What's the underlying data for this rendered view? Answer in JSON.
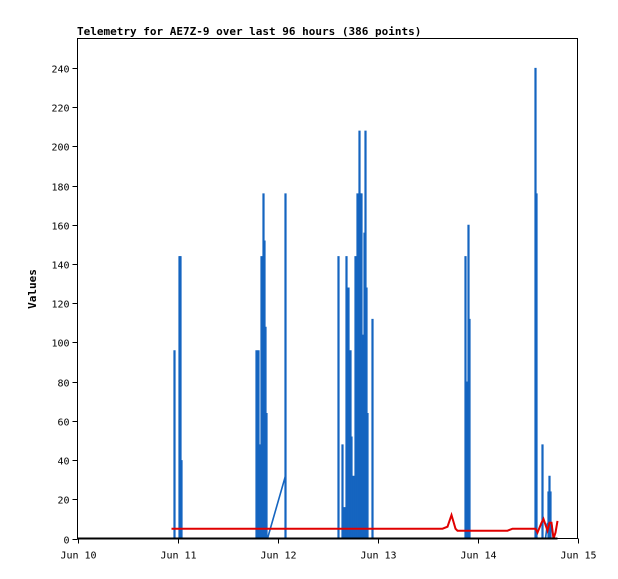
{
  "chart_data": {
    "type": "line",
    "title": "Telemetry for AE7Z-9 over last 96 hours (386 points)",
    "xlabel": "",
    "ylabel": "Values",
    "xlim": [
      0,
      5
    ],
    "ylim": [
      0,
      255
    ],
    "x_ticks": [
      {
        "value": 0,
        "label": "Jun 10"
      },
      {
        "value": 1,
        "label": "Jun 11"
      },
      {
        "value": 2,
        "label": "Jun 12"
      },
      {
        "value": 3,
        "label": "Jun 13"
      },
      {
        "value": 4,
        "label": "Jun 14"
      },
      {
        "value": 5,
        "label": "Jun 15"
      }
    ],
    "y_ticks": [
      0,
      20,
      40,
      60,
      80,
      100,
      120,
      140,
      160,
      180,
      200,
      220,
      240
    ],
    "grid": false,
    "series": [
      {
        "color": "#1565C0",
        "spikes": [
          [
            0.97,
            96
          ],
          [
            1.02,
            144
          ],
          [
            1.03,
            144
          ],
          [
            1.04,
            40
          ],
          [
            1.79,
            96
          ],
          [
            1.81,
            96
          ],
          [
            1.82,
            48
          ],
          [
            1.84,
            144
          ],
          [
            1.85,
            64
          ],
          [
            1.86,
            176
          ],
          [
            1.87,
            152
          ],
          [
            1.88,
            108
          ],
          [
            1.89,
            64
          ],
          [
            2.08,
            176
          ],
          [
            2.61,
            144
          ],
          [
            2.65,
            48
          ],
          [
            2.67,
            16
          ],
          [
            2.69,
            144
          ],
          [
            2.7,
            64
          ],
          [
            2.71,
            128
          ],
          [
            2.73,
            96
          ],
          [
            2.74,
            52
          ],
          [
            2.76,
            32
          ],
          [
            2.78,
            144
          ],
          [
            2.8,
            176
          ],
          [
            2.82,
            208
          ],
          [
            2.83,
            176
          ],
          [
            2.84,
            176
          ],
          [
            2.85,
            96
          ],
          [
            2.86,
            104
          ],
          [
            2.87,
            156
          ],
          [
            2.88,
            208
          ],
          [
            2.89,
            128
          ],
          [
            2.9,
            64
          ],
          [
            2.95,
            112
          ],
          [
            3.88,
            144
          ],
          [
            3.89,
            80
          ],
          [
            3.9,
            80
          ],
          [
            3.91,
            160
          ],
          [
            3.92,
            112
          ],
          [
            4.58,
            240
          ],
          [
            4.59,
            176
          ],
          [
            4.65,
            48
          ],
          [
            4.71,
            24
          ],
          [
            4.72,
            32
          ],
          [
            4.73,
            24
          ]
        ],
        "ramps": [
          {
            "x0": 1.9,
            "y0": 0,
            "x1": 2.08,
            "y1": 32
          },
          {
            "x0": 4.68,
            "y0": 0,
            "x1": 4.7,
            "y1": 8
          },
          {
            "x0": 4.74,
            "y0": 8,
            "x1": 4.76,
            "y1": 0
          }
        ]
      },
      {
        "color": "#E00000",
        "x": [
          0.94,
          1.2,
          1.5,
          2.0,
          2.5,
          3.0,
          3.5,
          3.65,
          3.7,
          3.74,
          3.78,
          3.8,
          4.0,
          4.3,
          4.35,
          4.55,
          4.58,
          4.6,
          4.64,
          4.66,
          4.7,
          4.72,
          4.74,
          4.76,
          4.78,
          4.8
        ],
        "y": [
          5,
          5,
          5,
          5,
          5,
          5,
          5,
          5,
          6,
          12,
          5,
          4,
          4,
          4,
          5,
          5,
          5,
          3,
          8,
          10,
          4,
          8,
          8,
          0,
          3,
          9
        ]
      },
      {
        "color": "#000000",
        "x": [
          0,
          4.8
        ],
        "y": [
          0,
          0
        ]
      }
    ]
  }
}
